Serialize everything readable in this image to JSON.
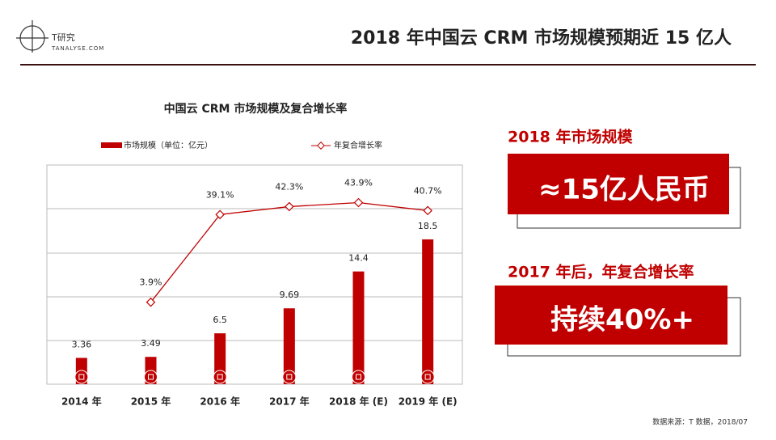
{
  "header": {
    "logo": "T研究",
    "logo_sub": "TANALYSE.COM",
    "title": "2018 年中国云 CRM 市场规模预期近 15 亿人"
  },
  "chart_data": {
    "type": "bar",
    "title": "中国云 CRM 市场规模及复合增长率",
    "categories": [
      "2014 年",
      "2015 年",
      "2016 年",
      "2017 年",
      "2018 年 (E)",
      "2019 年 (E)"
    ],
    "series": [
      {
        "name": "市场规模（单位：亿元）",
        "type": "bar",
        "color": "#c00000",
        "values": [
          3.36,
          3.49,
          6.5,
          9.69,
          14.4,
          18.5
        ]
      },
      {
        "name": "年复合增长率",
        "type": "line",
        "axis": "y2",
        "color": "#c00000",
        "values": [
          null,
          3.9,
          39.1,
          42.3,
          43.9,
          40.7
        ],
        "value_labels": [
          null,
          "3.9%",
          "39.1%",
          "42.3%",
          "43.9%",
          "40.7%"
        ]
      }
    ],
    "ylim": [
      0,
      28
    ],
    "y2lim": [
      -29,
      59
    ]
  },
  "panel": {
    "heading1": "2018 年市场规模",
    "box1": "≈15亿人民币",
    "heading2": "2017 年后，年复合增长率",
    "box2": "持续40%+"
  },
  "source": "数据来源：T 数据，2018/07"
}
